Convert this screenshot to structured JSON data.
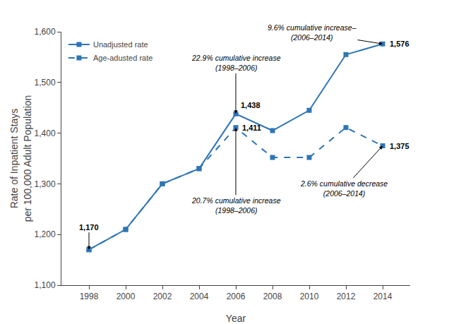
{
  "chart_data": {
    "type": "line",
    "xlabel": "Year",
    "ylabel": "Rate of Inpatient Stays\nper 100,000 Adult Population",
    "x": [
      1998,
      2000,
      2002,
      2004,
      2006,
      2008,
      2010,
      2012,
      2014
    ],
    "series": [
      {
        "name": "Unadjusted rate",
        "color": "#2E75B6",
        "marker": "square",
        "line_style": "solid",
        "values": [
          1170,
          1210,
          1300,
          1330,
          1438,
          1405,
          1445,
          1555,
          1576
        ]
      },
      {
        "name": "Age-adusted rate",
        "color": "#2E75B6",
        "marker": "square",
        "line_style": "dashed",
        "values": [
          1170,
          1210,
          1300,
          1330,
          1411,
          1352,
          1352,
          1411,
          1375
        ]
      }
    ],
    "xlim": [
      1996.5,
      2015.5
    ],
    "xticks": [
      1998,
      2000,
      2002,
      2004,
      2006,
      2008,
      2010,
      2012,
      2014
    ],
    "ylim": [
      1100,
      1600
    ],
    "yticks": [
      {
        "value": 1100,
        "label": "1,100"
      },
      {
        "value": 1200,
        "label": "1,200"
      },
      {
        "value": 1300,
        "label": "1,300"
      },
      {
        "value": 1400,
        "label": "1,400"
      },
      {
        "value": 1500,
        "label": "1,500"
      },
      {
        "value": 1600,
        "label": "1,600"
      }
    ],
    "grid": false,
    "legend": "upper left",
    "annotations": [
      {
        "text": "1,170",
        "x": 1998,
        "y": 1170
      },
      {
        "text": "22.9% cumulative increase\n(1998–2006)",
        "x": 2006,
        "y": 1438
      },
      {
        "text": "1,438",
        "x": 2006,
        "y": 1438
      },
      {
        "text": "20.7% cumulative increase\n(1998–2006)",
        "x": 2006,
        "y": 1411
      },
      {
        "text": "1,411",
        "x": 2006,
        "y": 1411
      },
      {
        "text": "9.6% cumulative increase–\n(2006–2014)",
        "x": 2014,
        "y": 1576
      },
      {
        "text": "1,576",
        "x": 2014,
        "y": 1576
      },
      {
        "text": "2.6% cumulative decrease\n(2006–2014)",
        "x": 2014,
        "y": 1375
      },
      {
        "text": "1,375",
        "x": 2014,
        "y": 1375
      }
    ]
  }
}
